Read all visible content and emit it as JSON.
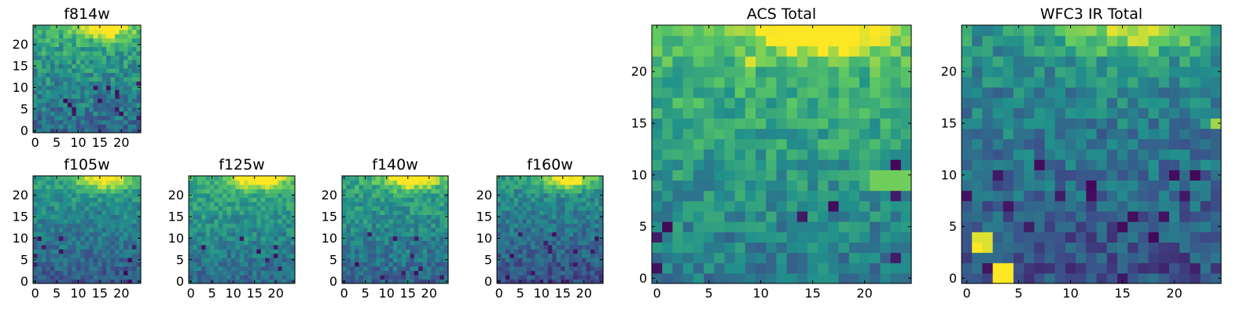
{
  "chart_data": [
    {
      "type": "heatmap",
      "title": "f814w",
      "xlabel": "",
      "ylabel": "",
      "xlim": [
        0,
        25
      ],
      "ylim": [
        0,
        25
      ],
      "xticks": [
        0,
        5,
        10,
        15,
        20
      ],
      "yticks": [
        0,
        5,
        10,
        15,
        20
      ],
      "grid": false,
      "values_description": "",
      "values": []
    },
    {
      "type": "heatmap",
      "title": "f105w",
      "xlabel": "",
      "ylabel": "",
      "xlim": [
        0,
        25
      ],
      "ylim": [
        0,
        25
      ],
      "xticks": [
        0,
        5,
        10,
        15,
        20
      ],
      "yticks": [
        0,
        5,
        10,
        15,
        20
      ],
      "grid": false,
      "values": []
    },
    {
      "type": "heatmap",
      "title": "f125w",
      "xlabel": "",
      "ylabel": "",
      "xlim": [
        0,
        25
      ],
      "ylim": [
        0,
        25
      ],
      "xticks": [
        0,
        5,
        10,
        15,
        20
      ],
      "yticks": [
        0,
        5,
        10,
        15,
        20
      ],
      "grid": false,
      "values": []
    },
    {
      "type": "heatmap",
      "title": "f140w",
      "xlabel": "",
      "ylabel": "",
      "xlim": [
        0,
        25
      ],
      "ylim": [
        0,
        25
      ],
      "xticks": [
        0,
        5,
        10,
        15,
        20
      ],
      "yticks": [
        0,
        5,
        10,
        15,
        20
      ],
      "grid": false,
      "values": []
    },
    {
      "type": "heatmap",
      "title": "f160w",
      "xlabel": "",
      "ylabel": "",
      "xlim": [
        0,
        25
      ],
      "ylim": [
        0,
        25
      ],
      "xticks": [
        0,
        5,
        10,
        15,
        20
      ],
      "yticks": [
        0,
        5,
        10,
        15,
        20
      ],
      "grid": false,
      "values": []
    },
    {
      "type": "heatmap",
      "title": "ACS Total",
      "xlabel": "",
      "ylabel": "",
      "xlim": [
        0,
        25
      ],
      "ylim": [
        0,
        25
      ],
      "xticks": [
        0,
        5,
        10,
        15,
        20
      ],
      "yticks": [
        0,
        5,
        10,
        15,
        20
      ],
      "grid": false,
      "values": []
    },
    {
      "type": "heatmap",
      "title": "WFC3 IR Total",
      "xlabel": "",
      "ylabel": "",
      "xlim": [
        0,
        25
      ],
      "ylim": [
        0,
        25
      ],
      "xticks": [
        0,
        5,
        10,
        15,
        20
      ],
      "yticks": [
        0,
        5,
        10,
        15,
        20
      ],
      "grid": false,
      "values": []
    }
  ],
  "colormap": [
    "#440154",
    "#3b528b",
    "#21918c",
    "#5ec962",
    "#fde725"
  ]
}
